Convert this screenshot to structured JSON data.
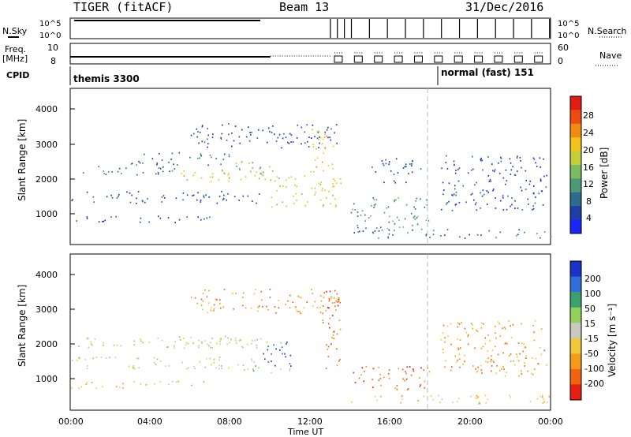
{
  "header": {
    "radar": "TIGER (fitACF)",
    "beam": "Beam 13",
    "date": "31/Dec/2016"
  },
  "strips": {
    "nsky_label": "N.Sky",
    "nsky_ticks": [
      "10^5",
      "10^0"
    ],
    "nsearch_label": "N.Search",
    "nsearch_ticks": [
      "10^5",
      "10^0"
    ],
    "freq_label_1": "Freq.",
    "freq_label_2": "[MHz]",
    "freq_ticks": [
      "10",
      "8"
    ],
    "nave_label": "Nave",
    "nave_ticks": [
      "60",
      "0"
    ],
    "cpid_label": "CPID",
    "cpid_left": "themis 3300",
    "cpid_right": "normal (fast) 151"
  },
  "chart_data": [
    {
      "type": "heatmap",
      "name": "power",
      "ylabel": "Slant Range [km]",
      "xlabel": "Time UT",
      "ylim": [
        0,
        4500
      ],
      "yticks": [
        "1000",
        "2000",
        "3000",
        "4000"
      ],
      "colorbar_label": "Power [dB]",
      "colorbar_ticks": [
        "4",
        "8",
        "12",
        "16",
        "20",
        "24",
        "28"
      ],
      "colorbar_colors": [
        "#1a24ff",
        "#1c3ea6",
        "#2b6d8a",
        "#4a9a78",
        "#7cbb62",
        "#c3cf3a",
        "#f2c21a",
        "#f28a12",
        "#ee4a12",
        "#e41d14"
      ],
      "scatter_regions": [
        {
          "t": [
            0.6,
            5.2
          ],
          "r": [
            2000,
            2300
          ],
          "level": 2
        },
        {
          "t": [
            0.0,
            9.5
          ],
          "r": [
            1200,
            1550
          ],
          "level": 1
        },
        {
          "t": [
            0.0,
            7.0
          ],
          "r": [
            650,
            850
          ],
          "level": 1
        },
        {
          "t": [
            3.0,
            8.0
          ],
          "r": [
            2300,
            2700
          ],
          "level": 2
        },
        {
          "t": [
            5.5,
            10.5
          ],
          "r": [
            1800,
            2150
          ],
          "level": 6
        },
        {
          "t": [
            7.5,
            10.0
          ],
          "r": [
            2000,
            2450
          ],
          "level": 4
        },
        {
          "t": [
            10.0,
            13.5
          ],
          "r": [
            1100,
            2000
          ],
          "level": 5
        },
        {
          "t": [
            12.0,
            13.2
          ],
          "r": [
            2100,
            3500
          ],
          "level": 6
        },
        {
          "t": [
            6.0,
            13.5
          ],
          "r": [
            2800,
            3500
          ],
          "level": 1
        },
        {
          "t": [
            14.0,
            18.0
          ],
          "r": [
            450,
            1400
          ],
          "level": 3
        },
        {
          "t": [
            14.0,
            24.0
          ],
          "r": [
            200,
            450
          ],
          "level": 2
        },
        {
          "t": [
            15.0,
            17.5
          ],
          "r": [
            1800,
            2500
          ],
          "level": 1
        },
        {
          "t": [
            18.5,
            23.8
          ],
          "r": [
            1000,
            2600
          ],
          "level": 1
        }
      ]
    },
    {
      "type": "heatmap",
      "name": "velocity",
      "ylabel": "Slant Range [km]",
      "xlabel": "Time UT",
      "ylim": [
        0,
        4500
      ],
      "yticks": [
        "1000",
        "2000",
        "3000",
        "4000"
      ],
      "colorbar_label": "Velocity [m s⁻¹]",
      "colorbar_ticks": [
        "200",
        "100",
        "50",
        "15",
        "-15",
        "-50",
        "-100",
        "-200"
      ],
      "colorbar_colors": [
        "#1a32c8",
        "#2f6ed6",
        "#3aa06e",
        "#8fd15a",
        "#c8c8c0",
        "#f0c83a",
        "#f59a1a",
        "#f0640f",
        "#e81e12"
      ],
      "scatter_regions": [
        {
          "t": [
            0.0,
            9.5
          ],
          "r": [
            1800,
            2150
          ],
          "level": 4
        },
        {
          "t": [
            5.5,
            10.5
          ],
          "r": [
            1800,
            2100
          ],
          "level": 4
        },
        {
          "t": [
            0.0,
            7.0
          ],
          "r": [
            650,
            850
          ],
          "level": 5
        },
        {
          "t": [
            0.0,
            9.5
          ],
          "r": [
            1200,
            1550
          ],
          "level": 4
        },
        {
          "t": [
            9.5,
            11.0
          ],
          "r": [
            1200,
            2000
          ],
          "level": 0
        },
        {
          "t": [
            8.5,
            11.0
          ],
          "r": [
            1100,
            1300
          ],
          "level": 3
        },
        {
          "t": [
            12.5,
            13.5
          ],
          "r": [
            1000,
            3500
          ],
          "level": 7
        },
        {
          "t": [
            14.0,
            18.0
          ],
          "r": [
            600,
            1300
          ],
          "level": 7
        },
        {
          "t": [
            14.0,
            24.0
          ],
          "r": [
            200,
            450
          ],
          "level": 5
        },
        {
          "t": [
            18.5,
            23.8
          ],
          "r": [
            1000,
            2600
          ],
          "level": 6
        },
        {
          "t": [
            6.0,
            13.5
          ],
          "r": [
            2800,
            3500
          ],
          "level": 6
        }
      ]
    }
  ],
  "xaxis": {
    "label": "Time UT",
    "ticks": [
      "00:00",
      "04:00",
      "08:00",
      "12:00",
      "16:00",
      "20:00",
      "00:00"
    ]
  }
}
